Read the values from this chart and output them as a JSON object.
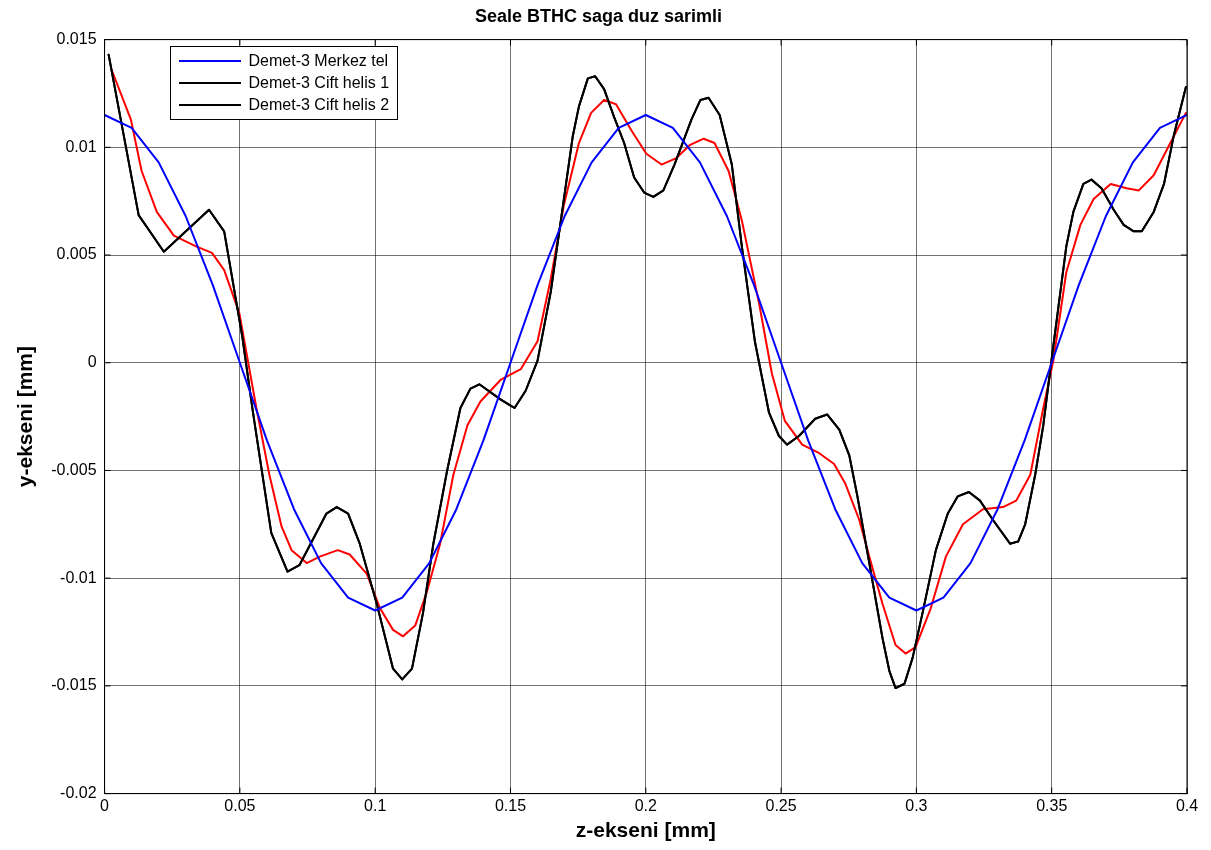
{
  "chart_data": {
    "type": "line",
    "title": "Seale BTHC saga duz sarimli",
    "xlabel": "z-ekseni [mm]",
    "ylabel": "y-ekseni [mm]",
    "xlim": [
      0,
      0.4
    ],
    "xticks": [
      0,
      0.05,
      0.1,
      0.15,
      0.2,
      0.25,
      0.3,
      0.35,
      0.4
    ],
    "ylim": [
      -0.02,
      0.015
    ],
    "yticks": [
      -0.02,
      -0.015,
      -0.01,
      -0.005,
      0,
      0.005,
      0.01,
      0.015
    ],
    "grid": true,
    "legend": "top left",
    "marker": "none",
    "line_style": "solid",
    "series": [
      {
        "name": "Demet-3 Merkez tel",
        "color": "#0000ff",
        "x": [
          0,
          0.01,
          0.02,
          0.03,
          0.04,
          0.05,
          0.06,
          0.07,
          0.08,
          0.09,
          0.1,
          0.11,
          0.12,
          0.13,
          0.14,
          0.15,
          0.16,
          0.17,
          0.18,
          0.19,
          0.2,
          0.21,
          0.22,
          0.23,
          0.24,
          0.25,
          0.26,
          0.27,
          0.28,
          0.29,
          0.3,
          0.31,
          0.32,
          0.33,
          0.34,
          0.35,
          0.36,
          0.37,
          0.38,
          0.39,
          0.4
        ],
        "values": [
          0.0115,
          0.0109,
          0.0093,
          0.0068,
          0.0036,
          0,
          -0.0036,
          -0.0068,
          -0.0093,
          -0.0109,
          -0.0115,
          -0.0109,
          -0.0093,
          -0.0068,
          -0.0036,
          0,
          0.0036,
          0.0068,
          0.0093,
          0.0109,
          0.0115,
          0.0109,
          0.0093,
          0.0068,
          0.0036,
          0,
          -0.0036,
          -0.0068,
          -0.0093,
          -0.0109,
          -0.0115,
          -0.0109,
          -0.0093,
          -0.0068,
          -0.0036,
          0,
          0.0036,
          0.0068,
          0.0093,
          0.0109,
          0.0115
        ]
      },
      {
        "name": "Demet-3 Cift helis 1",
        "color": "#000000",
        "x": [
          0.0015,
          0.0126,
          0.0219,
          0.0386,
          0.0442,
          0.0509,
          0.0546,
          0.0616,
          0.0676,
          0.072,
          0.082,
          0.0858,
          0.09,
          0.0943,
          0.1006,
          0.1066,
          0.11,
          0.1136,
          0.1177,
          0.1215,
          0.1266,
          0.1315,
          0.1352,
          0.1385,
          0.1463,
          0.1515,
          0.1556,
          0.16,
          0.1649,
          0.1686,
          0.173,
          0.1753,
          0.1786,
          0.1813,
          0.1846,
          0.1883,
          0.192,
          0.1957,
          0.1994,
          0.2028,
          0.2065,
          0.2106,
          0.2169,
          0.2202,
          0.2232,
          0.2273,
          0.2318,
          0.2355,
          0.2403,
          0.2455,
          0.2492,
          0.2522,
          0.2566,
          0.2626,
          0.267,
          0.2715,
          0.2752,
          0.2782,
          0.2826,
          0.2875,
          0.29,
          0.2923,
          0.2956,
          0.2986,
          0.3023,
          0.3072,
          0.3116,
          0.3153,
          0.3194,
          0.3235,
          0.3283,
          0.3346,
          0.3376,
          0.3402,
          0.3439,
          0.3469,
          0.3499,
          0.3554,
          0.358,
          0.3617,
          0.3647,
          0.3684,
          0.3729,
          0.3766,
          0.3803,
          0.3833,
          0.3877,
          0.3915,
          0.3952,
          0.3996
        ],
        "values": [
          0.0143,
          0.00685,
          0.00515,
          0.0071,
          0.0061,
          0.0012,
          -0.0021,
          -0.0079,
          -0.0097,
          -0.0094,
          -0.007,
          -0.0067,
          -0.007,
          -0.0084,
          -0.0112,
          -0.0142,
          -0.0147,
          -0.0142,
          -0.0116,
          -0.0084,
          -0.005,
          -0.0021,
          -0.0012,
          -0.001,
          -0.0017,
          -0.0021,
          -0.0013,
          0.0001,
          0.0033,
          0.0066,
          0.0105,
          0.0119,
          0.0132,
          0.0133,
          0.0127,
          0.0114,
          0.0102,
          0.0086,
          0.0079,
          0.0077,
          0.008,
          0.0092,
          0.0113,
          0.0122,
          0.0123,
          0.0115,
          0.0092,
          0.0054,
          0.001,
          -0.0023,
          -0.0034,
          -0.0038,
          -0.0034,
          -0.0026,
          -0.0024,
          -0.0031,
          -0.0043,
          -0.0062,
          -0.0093,
          -0.0128,
          -0.0143,
          -0.0151,
          -0.0149,
          -0.0137,
          -0.0116,
          -0.0087,
          -0.007,
          -0.0062,
          -0.006,
          -0.0064,
          -0.0073,
          -0.0084,
          -0.0083,
          -0.0075,
          -0.0052,
          -0.0029,
          0.0001,
          0.0054,
          0.007,
          0.0083,
          0.0085,
          0.0081,
          0.0071,
          0.0064,
          0.0061,
          0.0061,
          0.007,
          0.0083,
          0.0106,
          0.0128
        ]
      },
      {
        "name": "Demet-3 Cift helis 2",
        "color": "#000000",
        "x": [
          0.0015,
          0.0126,
          0.0219,
          0.0386,
          0.0442,
          0.0509,
          0.0546,
          0.0616,
          0.0676,
          0.072,
          0.082,
          0.0858,
          0.09,
          0.0943,
          0.1006,
          0.1066,
          0.11,
          0.1136,
          0.1177,
          0.1215,
          0.1266,
          0.1315,
          0.1352,
          0.1385,
          0.1463,
          0.1515,
          0.1556,
          0.16,
          0.1649,
          0.1686,
          0.173,
          0.1753,
          0.1786,
          0.1813,
          0.1846,
          0.1883,
          0.192,
          0.1957,
          0.1994,
          0.2028,
          0.2065,
          0.2106,
          0.2169,
          0.2202,
          0.2232,
          0.2273,
          0.2318,
          0.2355,
          0.2403,
          0.2455,
          0.2492,
          0.2522,
          0.2566,
          0.2626,
          0.267,
          0.2715,
          0.2752,
          0.2782,
          0.2826,
          0.2875,
          0.29,
          0.2923,
          0.2956,
          0.2986,
          0.3023,
          0.3072,
          0.3116,
          0.3153,
          0.3194,
          0.3235,
          0.3283,
          0.3346,
          0.3376,
          0.3402,
          0.3439,
          0.3469,
          0.3499,
          0.3554,
          0.358,
          0.3617,
          0.3647,
          0.3684,
          0.3729,
          0.3766,
          0.3803,
          0.3833,
          0.3877,
          0.3915,
          0.3952,
          0.3996
        ],
        "values": [
          0.0143,
          0.00685,
          0.00515,
          0.0071,
          0.0061,
          0.0012,
          -0.0021,
          -0.0079,
          -0.0097,
          -0.0094,
          -0.007,
          -0.0067,
          -0.007,
          -0.0084,
          -0.0112,
          -0.0142,
          -0.0147,
          -0.0142,
          -0.0116,
          -0.0084,
          -0.005,
          -0.0021,
          -0.0012,
          -0.001,
          -0.0017,
          -0.0021,
          -0.0013,
          0.0001,
          0.0033,
          0.0066,
          0.0105,
          0.0119,
          0.0132,
          0.0133,
          0.0127,
          0.0114,
          0.0102,
          0.0086,
          0.0079,
          0.0077,
          0.008,
          0.0092,
          0.0113,
          0.0122,
          0.0123,
          0.0115,
          0.0092,
          0.0054,
          0.001,
          -0.0023,
          -0.0034,
          -0.0038,
          -0.0034,
          -0.0026,
          -0.0024,
          -0.0031,
          -0.0043,
          -0.0062,
          -0.0093,
          -0.0128,
          -0.0143,
          -0.0151,
          -0.0149,
          -0.0137,
          -0.0116,
          -0.0087,
          -0.007,
          -0.0062,
          -0.006,
          -0.0064,
          -0.0073,
          -0.0084,
          -0.0083,
          -0.0075,
          -0.0052,
          -0.0029,
          0.0001,
          0.0054,
          0.007,
          0.0083,
          0.0085,
          0.0081,
          0.0071,
          0.0064,
          0.0061,
          0.0061,
          0.007,
          0.0083,
          0.0106,
          0.0128
        ]
      },
      {
        "color": "#ff0000",
        "x": [
          0.0026,
          0.0097,
          0.0137,
          0.0193,
          0.0256,
          0.0338,
          0.0397,
          0.0442,
          0.0498,
          0.0561,
          0.0609,
          0.0654,
          0.0691,
          0.0747,
          0.0795,
          0.0862,
          0.0906,
          0.0969,
          0.1018,
          0.1066,
          0.1103,
          0.1148,
          0.1192,
          0.124,
          0.1289,
          0.1341,
          0.1389,
          0.1463,
          0.1538,
          0.16,
          0.1649,
          0.1697,
          0.1753,
          0.1798,
          0.1846,
          0.189,
          0.1946,
          0.2002,
          0.2058,
          0.2113,
          0.2162,
          0.2214,
          0.2254,
          0.2306,
          0.2355,
          0.2418,
          0.2466,
          0.2514,
          0.2578,
          0.2641,
          0.2696,
          0.2737,
          0.2789,
          0.2826,
          0.2875,
          0.2923,
          0.296,
          0.2997,
          0.3053,
          0.3109,
          0.3172,
          0.3246,
          0.332,
          0.3369,
          0.3421,
          0.3469,
          0.3506,
          0.3554,
          0.3606,
          0.3655,
          0.3718,
          0.3777,
          0.3822,
          0.3877,
          0.3926,
          0.3996
        ],
        "values": [
          0.0136,
          0.0113,
          0.0089,
          0.007,
          0.0059,
          0.0054,
          0.0051,
          0.0043,
          0.0023,
          -0.0021,
          -0.0052,
          -0.0076,
          -0.0087,
          -0.0093,
          -0.009,
          -0.0087,
          -0.0089,
          -0.0098,
          -0.0114,
          -0.0124,
          -0.0127,
          -0.0122,
          -0.0106,
          -0.0084,
          -0.0052,
          -0.0029,
          -0.0018,
          -0.0008,
          -0.0003,
          0.001,
          0.0039,
          0.0073,
          0.0102,
          0.0116,
          0.0122,
          0.012,
          0.0108,
          0.0097,
          0.0092,
          0.0095,
          0.0101,
          0.0104,
          0.0102,
          0.0089,
          0.0066,
          0.0028,
          -0.0005,
          -0.0027,
          -0.0038,
          -0.0042,
          -0.0047,
          -0.0056,
          -0.0073,
          -0.009,
          -0.0112,
          -0.0131,
          -0.0135,
          -0.0132,
          -0.0114,
          -0.009,
          -0.0075,
          -0.0068,
          -0.0067,
          -0.0064,
          -0.0052,
          -0.0021,
          0.0001,
          0.0042,
          0.0064,
          0.0076,
          0.0083,
          0.0081,
          0.008,
          0.0087,
          0.0099,
          0.0116
        ]
      }
    ]
  }
}
